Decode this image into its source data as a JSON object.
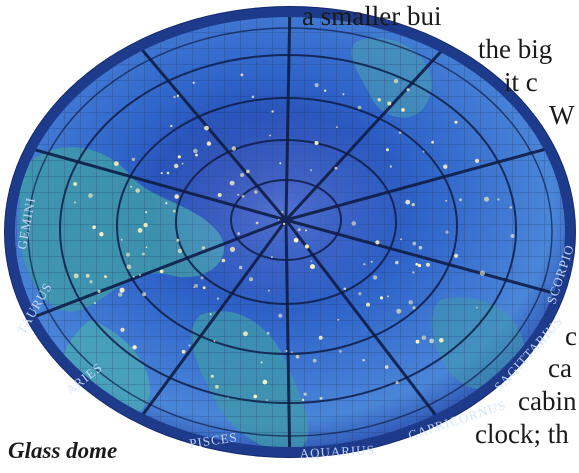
{
  "document": {
    "lines": [
      "a smaller bui",
      "the big",
      "it c",
      "W",
      "c",
      "ca",
      "cabin",
      "clock; th"
    ],
    "caption": "Glass dome"
  },
  "photo": {
    "zodiac": [
      "GEMINI",
      "TAURUS",
      "ARIES",
      "PISCES",
      "AQUARIUS",
      "CAPRICORNUS",
      "SAGITTARIUS",
      "SCORPIO"
    ],
    "colors": {
      "rim": "#1e3a8a",
      "dome_center": "#1a2f96",
      "dome_mid": "#2f63c9",
      "dome_outer": "#4a86d8",
      "land": "#3f9aa9",
      "lead": "#0f1d47",
      "star": "#fff4c2"
    },
    "icons": [
      "star-icon"
    ]
  }
}
